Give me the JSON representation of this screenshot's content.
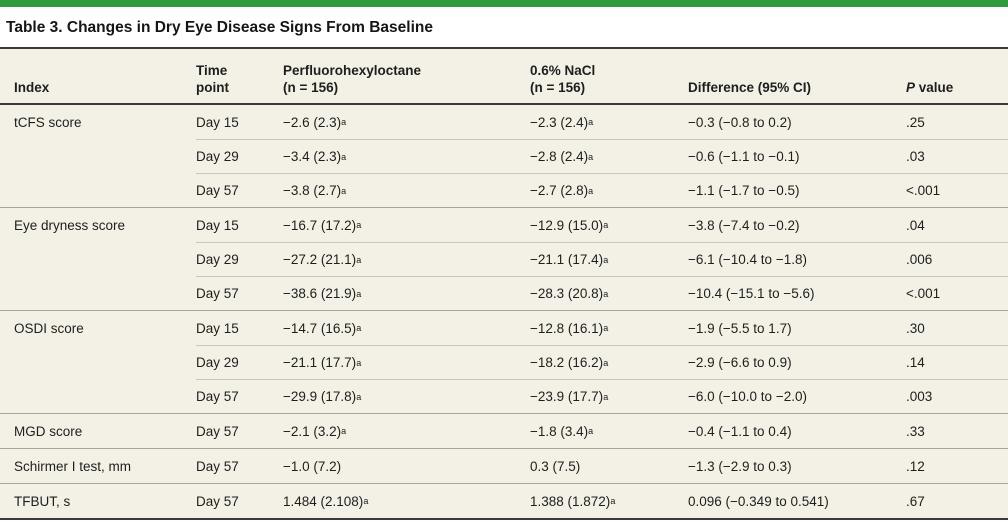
{
  "accent_color": "#2e9b3f",
  "background_beige": "#f3f1e6",
  "table": {
    "title": "Table 3. Changes in Dry Eye Disease Signs From Baseline",
    "header": {
      "cells": [
        {
          "line1": "Index",
          "line2": ""
        },
        {
          "line1": "Time",
          "line2": "point"
        },
        {
          "line1": "Perfluorohexyloctane",
          "line2": "(n = 156)"
        },
        {
          "line1": "0.6% NaCl",
          "line2": "(n = 156)"
        },
        {
          "line1": "Difference (95% CI)",
          "line2": ""
        }
      ],
      "p_italic": "P",
      "p_rest": " value"
    },
    "groups": [
      {
        "index": "tCFS score",
        "rows": [
          {
            "time": "Day 15",
            "pfho": "−2.6 (2.3)^a",
            "nacl": "−2.3 (2.4)^a",
            "diff": "−0.3 (−0.8 to 0.2)",
            "p": ".25"
          },
          {
            "time": "Day 29",
            "pfho": "−3.4 (2.3)^a",
            "nacl": "−2.8 (2.4)^a",
            "diff": "−0.6 (−1.1 to −0.1)",
            "p": ".03"
          },
          {
            "time": "Day 57",
            "pfho": "−3.8 (2.7)^a",
            "nacl": "−2.7 (2.8)^a",
            "diff": "−1.1 (−1.7 to −0.5)",
            "p": "<.001"
          }
        ]
      },
      {
        "index": "Eye dryness score",
        "rows": [
          {
            "time": "Day 15",
            "pfho": "−16.7 (17.2)^a",
            "nacl": "−12.9 (15.0)^a",
            "diff": "−3.8 (−7.4 to −0.2)",
            "p": ".04"
          },
          {
            "time": "Day 29",
            "pfho": "−27.2 (21.1)^a",
            "nacl": "−21.1 (17.4)^a",
            "diff": "−6.1 (−10.4 to −1.8)",
            "p": ".006"
          },
          {
            "time": "Day 57",
            "pfho": "−38.6 (21.9)^a",
            "nacl": "−28.3 (20.8)^a",
            "diff": "−10.4 (−15.1 to −5.6)",
            "p": "<.001"
          }
        ]
      },
      {
        "index": "OSDI score",
        "rows": [
          {
            "time": "Day 15",
            "pfho": "−14.7 (16.5)^a",
            "nacl": "−12.8 (16.1)^a",
            "diff": "−1.9 (−5.5 to 1.7)",
            "p": ".30"
          },
          {
            "time": "Day 29",
            "pfho": "−21.1 (17.7)^a",
            "nacl": "−18.2 (16.2)^a",
            "diff": "−2.9 (−6.6 to 0.9)",
            "p": ".14"
          },
          {
            "time": "Day 57",
            "pfho": "−29.9 (17.8)^a",
            "nacl": "−23.9 (17.7)^a",
            "diff": "−6.0 (−10.0 to −2.0)",
            "p": ".003"
          }
        ]
      },
      {
        "index": "MGD score",
        "rows": [
          {
            "time": "Day 57",
            "pfho": "−2.1 (3.2)^a",
            "nacl": "−1.8 (3.4)^a",
            "diff": "−0.4 (−1.1 to 0.4)",
            "p": ".33"
          }
        ]
      },
      {
        "index": "Schirmer I test, mm",
        "rows": [
          {
            "time": "Day 57",
            "pfho": "−1.0 (7.2)",
            "nacl": "0.3 (7.5)",
            "diff": "−1.3 (−2.9 to 0.3)",
            "p": ".12"
          }
        ]
      },
      {
        "index": "TFBUT, s",
        "rows": [
          {
            "time": "Day 57",
            "pfho": "1.484 (2.108)^a",
            "nacl": "1.388 (1.872)^a",
            "diff": "0.096 (−0.349 to 0.541)",
            "p": ".67"
          }
        ]
      }
    ]
  }
}
